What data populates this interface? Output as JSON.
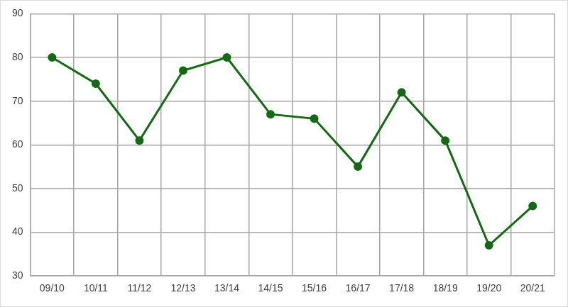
{
  "chart_data": {
    "type": "line",
    "categories": [
      "09/10",
      "10/11",
      "11/12",
      "12/13",
      "13/14",
      "14/15",
      "15/16",
      "16/17",
      "17/18",
      "18/19",
      "19/20",
      "20/21"
    ],
    "values": [
      80,
      74,
      61,
      77,
      80,
      67,
      66,
      55,
      72,
      61,
      37,
      46
    ],
    "color": "#126b12",
    "marker": "circle",
    "line_style": "solid",
    "ylim": [
      30,
      90
    ],
    "yticks": [
      30,
      40,
      50,
      60,
      70,
      80,
      90
    ],
    "grid": true
  }
}
